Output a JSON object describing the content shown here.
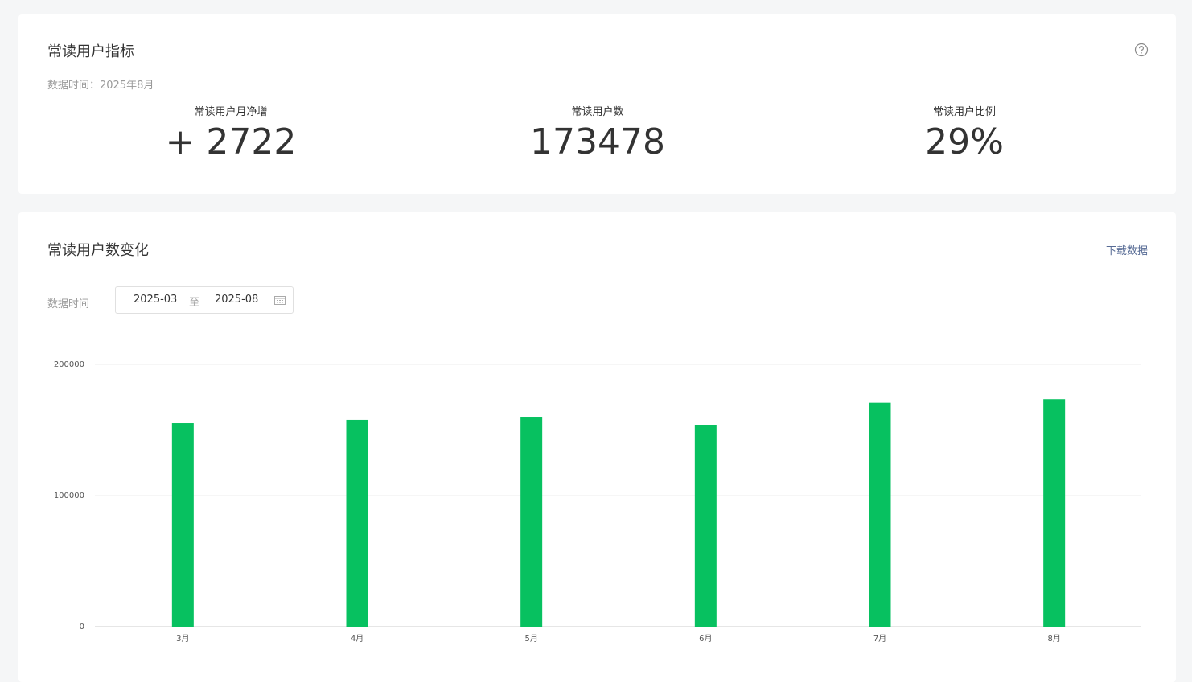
{
  "metrics_card": {
    "title": "常读用户指标",
    "data_time": "数据时间：2025年8月",
    "metrics": [
      {
        "label": "常读用户月净增",
        "value": "+ 2722"
      },
      {
        "label": "常读用户数",
        "value": "173478"
      },
      {
        "label": "常读用户比例",
        "value": "29%"
      }
    ]
  },
  "trend_card": {
    "download": "下载数据",
    "date_label": "数据时间",
    "start": "2025-03",
    "separator": "至",
    "end": "2025-08"
  },
  "chart_data": {
    "type": "bar",
    "title": "常读用户数变化",
    "categories": [
      "3月",
      "4月",
      "5月",
      "6月",
      "7月",
      "8月"
    ],
    "values": [
      155200,
      157700,
      159500,
      153400,
      170756,
      173478
    ],
    "color": "#07c160",
    "ylim": [
      0,
      200000
    ],
    "yticks": [
      0,
      100000,
      200000
    ],
    "grid": true
  }
}
